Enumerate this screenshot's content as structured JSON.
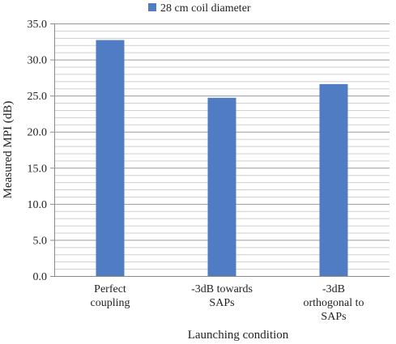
{
  "chart_data": {
    "type": "bar",
    "categories": [
      [
        "Perfect",
        "coupling"
      ],
      [
        "-3dB towards",
        "SAPs"
      ],
      [
        "-3dB",
        "orthogonal to",
        "SAPs"
      ]
    ],
    "series": [
      {
        "name": "28 cm coil diameter",
        "values": [
          32.7,
          24.7,
          26.6
        ],
        "color": "#4f7cc2"
      }
    ],
    "xlabel": "Launching condition",
    "ylabel": "Measured MPI (dB)",
    "ylim": [
      0,
      35
    ],
    "yticks": [
      0.0,
      5.0,
      10.0,
      15.0,
      20.0,
      25.0,
      30.0,
      35.0
    ],
    "ytick_labels": [
      "0.0",
      "5.0",
      "10.0",
      "15.0",
      "20.0",
      "25.0",
      "30.0",
      "35.0"
    ],
    "minor_grid_step": 1,
    "grid": true,
    "legend_position": "top"
  }
}
